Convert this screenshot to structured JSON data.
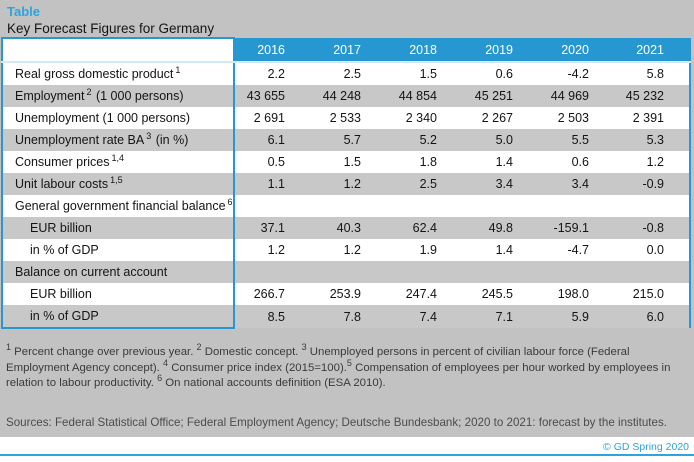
{
  "header": {
    "kicker": "Table",
    "title": "Key Forecast Figures for Germany"
  },
  "table": {
    "years": [
      "2016",
      "2017",
      "2018",
      "2019",
      "2020",
      "2021"
    ],
    "rows": [
      {
        "label": "Real gross domestic product",
        "sup": "1",
        "suffix": "",
        "indent": false,
        "values": [
          "2.2",
          "2.5",
          "1.5",
          "0.6",
          "-4.2",
          "5.8"
        ]
      },
      {
        "label": "Employment",
        "sup": "2",
        "suffix": " (1 000 persons)",
        "indent": false,
        "values": [
          "43 655",
          "44 248",
          "44 854",
          "45 251",
          "44 969",
          "45 232"
        ]
      },
      {
        "label": "Unemployment (1 000 persons)",
        "sup": "",
        "suffix": "",
        "indent": false,
        "values": [
          "2 691",
          "2 533",
          "2 340",
          "2 267",
          "2 503",
          "2 391"
        ]
      },
      {
        "label": "Unemployment rate BA",
        "sup": "3",
        "suffix": " (in %)",
        "indent": false,
        "values": [
          "6.1",
          "5.7",
          "5.2",
          "5.0",
          "5.5",
          "5.3"
        ]
      },
      {
        "label": "Consumer prices",
        "sup": "1,4",
        "suffix": "",
        "indent": false,
        "values": [
          "0.5",
          "1.5",
          "1.8",
          "1.4",
          "0.6",
          "1.2"
        ]
      },
      {
        "label": "Unit labour costs",
        "sup": "1,5",
        "suffix": "",
        "indent": false,
        "values": [
          "1.1",
          "1.2",
          "2.5",
          "3.4",
          "3.4",
          "-0.9"
        ]
      },
      {
        "label": "General government financial balance",
        "sup": "6",
        "suffix": "",
        "indent": false,
        "values": [
          "",
          "",
          "",
          "",
          "",
          ""
        ]
      },
      {
        "label": "EUR billion",
        "sup": "",
        "suffix": "",
        "indent": true,
        "values": [
          "37.1",
          "40.3",
          "62.4",
          "49.8",
          "-159.1",
          "-0.8"
        ]
      },
      {
        "label": "in % of GDP",
        "sup": "",
        "suffix": "",
        "indent": true,
        "values": [
          "1.2",
          "1.2",
          "1.9",
          "1.4",
          "-4.7",
          "0.0"
        ]
      },
      {
        "label": "Balance on current account",
        "sup": "",
        "suffix": "",
        "indent": false,
        "values": [
          "",
          "",
          "",
          "",
          "",
          ""
        ]
      },
      {
        "label": "EUR billion",
        "sup": "",
        "suffix": "",
        "indent": true,
        "values": [
          "266.7",
          "253.9",
          "247.4",
          "245.5",
          "198.0",
          "215.0"
        ]
      },
      {
        "label": "in % of GDP",
        "sup": "",
        "suffix": "",
        "indent": true,
        "values": [
          "8.5",
          "7.8",
          "7.4",
          "7.1",
          "5.9",
          "6.0"
        ]
      }
    ]
  },
  "footnotes": [
    {
      "sup": "1",
      "text": " Percent change over previous year. "
    },
    {
      "sup": "2",
      "text": " Domestic concept. "
    },
    {
      "sup": "3",
      "text": " Unemployed persons in percent of civilian labour force (Federal Employment Agency concept). "
    },
    {
      "sup": "4",
      "text": " Consumer price index (2015=100)."
    },
    {
      "sup": "5",
      "text": " Compensation of employees per hour worked by employees in relation to labour productivity.  "
    },
    {
      "sup": "6",
      "text": " On national accounts definition (ESA 2010)."
    }
  ],
  "sources": "Sources: Federal Statistical Office; Federal Employment Agency; Deutsche Bundesbank; 2020 to 2021: forecast by the institutes.",
  "footer": {
    "copyright": "© GD Spring 2020"
  },
  "colors": {
    "accent_blue": "#2797d2",
    "title_blue": "#2ea3dc",
    "page_gray": "#c2c2c2",
    "row_gray": "#c8c8c8"
  }
}
